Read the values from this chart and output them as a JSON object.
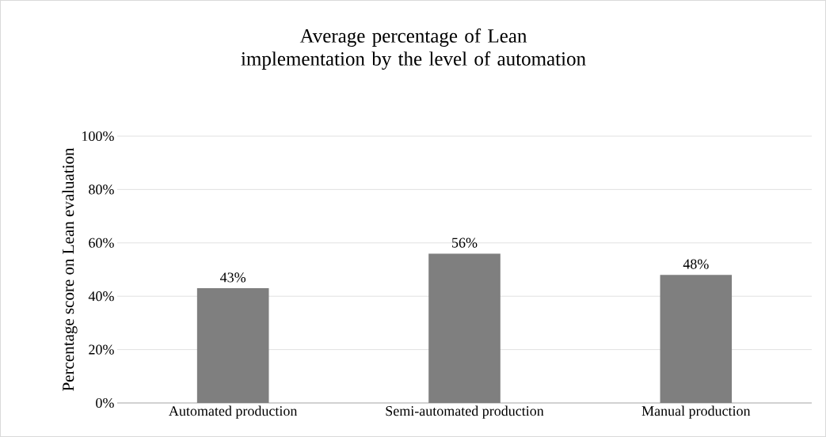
{
  "chart_data": {
    "type": "bar",
    "title": "Average percentage of Lean implementation by the level of automation",
    "ylabel": "Percentage score on Lean evaluation",
    "categories": [
      "Automated production",
      "Semi-automated production",
      "Manual production"
    ],
    "values": [
      43,
      56,
      48
    ],
    "value_labels": [
      "43%",
      "56%",
      "48%"
    ],
    "color": "#7f7f7f",
    "ylim": [
      0,
      100
    ],
    "yticks": [
      {
        "value": 0,
        "label": "0%"
      },
      {
        "value": 20,
        "label": "20%"
      },
      {
        "value": 40,
        "label": "40%"
      },
      {
        "value": 60,
        "label": "60%"
      },
      {
        "value": 80,
        "label": "80%"
      },
      {
        "value": 100,
        "label": "100%"
      }
    ],
    "grid": "y"
  }
}
